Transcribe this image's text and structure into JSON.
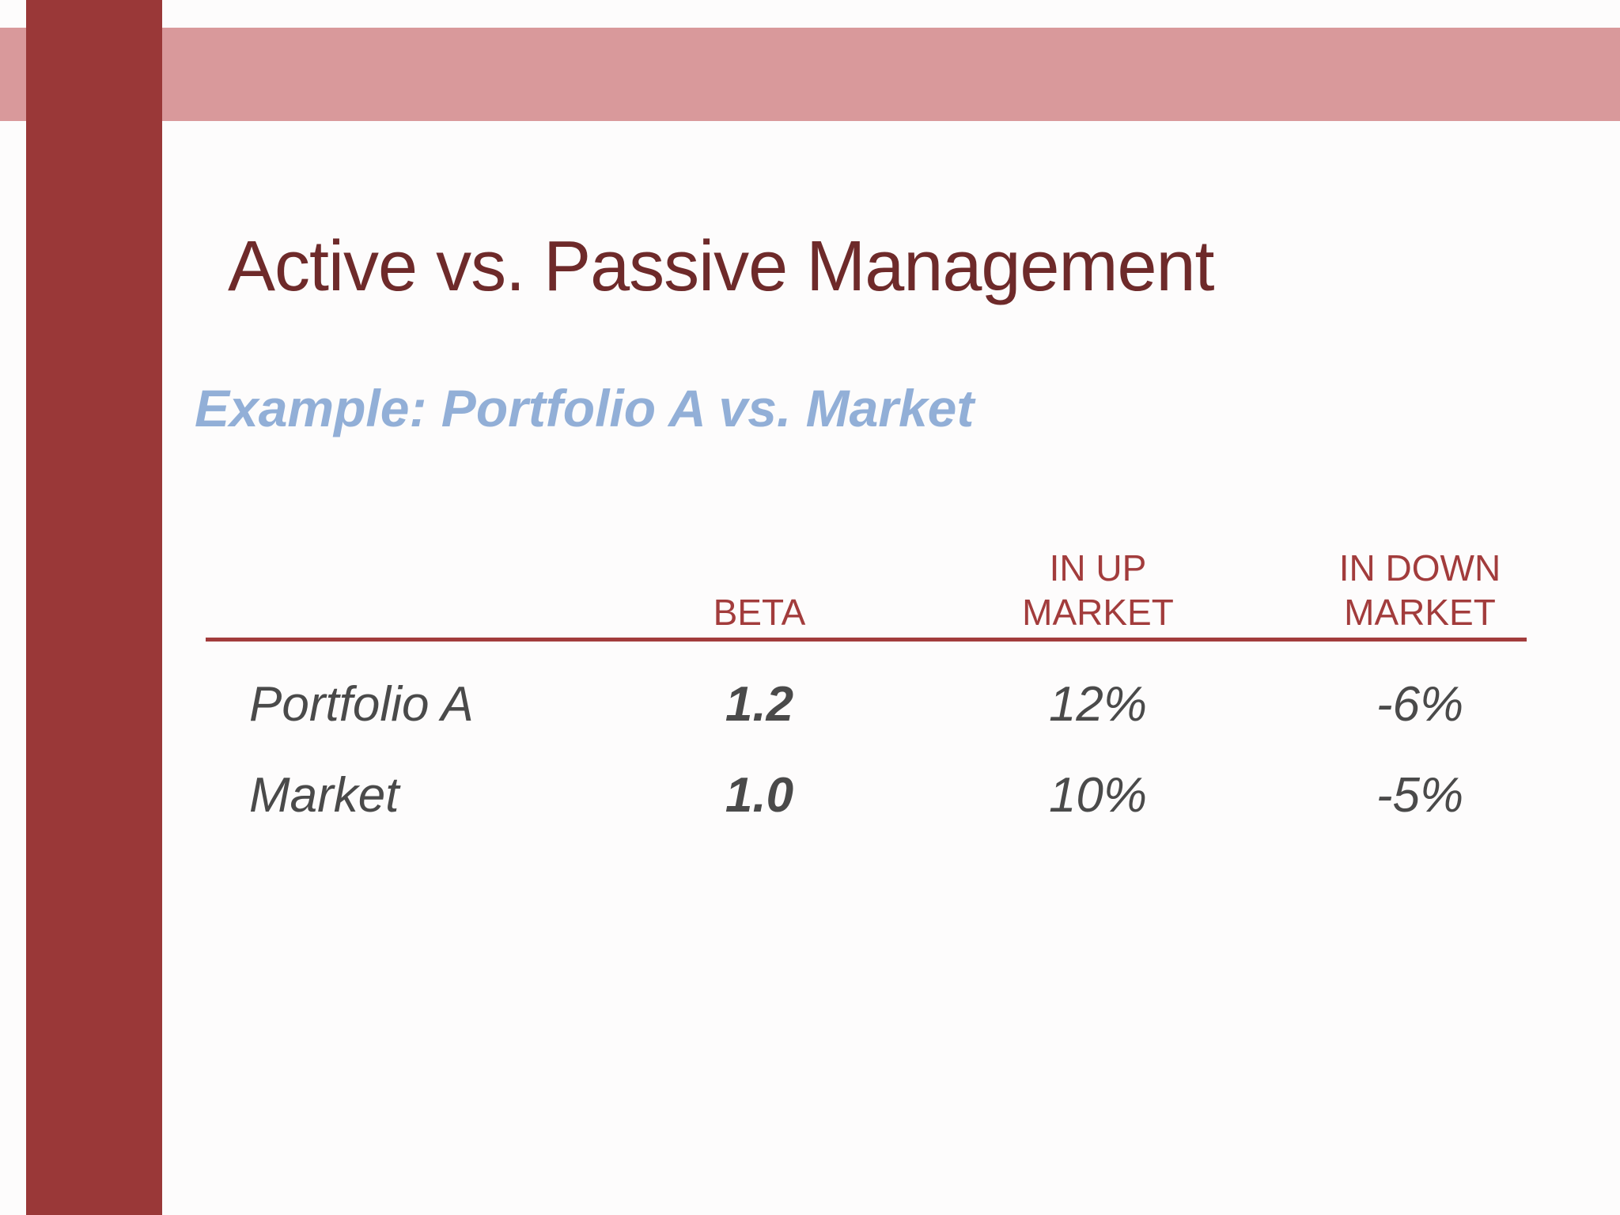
{
  "slide": {
    "title": "Active vs. Passive Management",
    "subtitle": "Example: Portfolio A vs. Market"
  },
  "table": {
    "columns": [
      "",
      "BETA",
      "IN UP MARKET",
      "IN DOWN MARKET"
    ],
    "rows": [
      {
        "label": "Portfolio A",
        "beta": "1.2",
        "in_up_market": "12%",
        "in_down_market": "-6%"
      },
      {
        "label": "Market",
        "beta": "1.0",
        "in_up_market": "10%",
        "in_down_market": "-5%"
      }
    ]
  },
  "colors": {
    "sidebar_bar": "#9a3838",
    "top_band": "#d9999b",
    "title_text": "#6e2a2a",
    "table_header_text": "#a23c3c",
    "table_rule": "#a23c3c",
    "subtitle_text": "#92afd7",
    "body_text": "#4a4a4a",
    "background": "#fdfcfc"
  }
}
